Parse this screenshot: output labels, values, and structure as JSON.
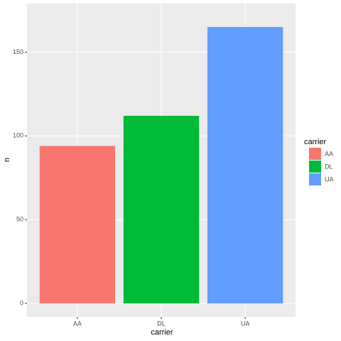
{
  "chart_data": {
    "type": "bar",
    "categories": [
      "AA",
      "DL",
      "UA"
    ],
    "values": [
      94,
      112,
      165
    ],
    "colors": [
      "#F8766D",
      "#00BA38",
      "#619CFF"
    ],
    "x_label": "carrier",
    "y_label": "n",
    "legend_title": "carrier",
    "ylim": [
      -8,
      179
    ],
    "yticks": [
      0,
      50,
      100,
      150
    ],
    "grid": true,
    "legend": "right"
  }
}
